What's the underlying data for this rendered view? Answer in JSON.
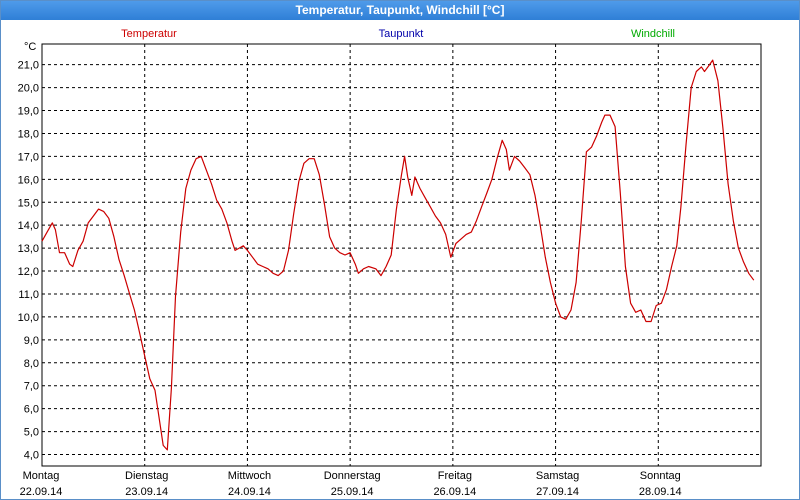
{
  "window": {
    "title": "Temperatur, Taupunkt, Windchill [°C]"
  },
  "chart_data": {
    "type": "line",
    "title": "Temperatur, Taupunkt, Windchill [°C]",
    "ylabel": "°C",
    "unit": "°C",
    "ylim": [
      3.5,
      21.9
    ],
    "xlim": [
      0,
      7
    ],
    "grid": true,
    "legend_placement": "top",
    "legend": [
      {
        "name": "Temperatur",
        "color": "#cc0000"
      },
      {
        "name": "Taupunkt",
        "color": "#0000aa"
      },
      {
        "name": "Windchill",
        "color": "#00aa00"
      }
    ],
    "yticks": [
      "4,0",
      "5,0",
      "6,0",
      "7,0",
      "8,0",
      "9,0",
      "10,0",
      "11,0",
      "12,0",
      "13,0",
      "14,0",
      "15,0",
      "16,0",
      "17,0",
      "18,0",
      "19,0",
      "20,0",
      "21,0"
    ],
    "yticks_values": [
      4,
      5,
      6,
      7,
      8,
      9,
      10,
      11,
      12,
      13,
      14,
      15,
      16,
      17,
      18,
      19,
      20,
      21
    ],
    "xticks": [
      {
        "day": "Montag",
        "date": "22.09.14"
      },
      {
        "day": "Dienstag",
        "date": "23.09.14"
      },
      {
        "day": "Mittwoch",
        "date": "24.09.14"
      },
      {
        "day": "Donnerstag",
        "date": "25.09.14"
      },
      {
        "day": "Freitag",
        "date": "26.09.14"
      },
      {
        "day": "Samstag",
        "date": "27.09.14"
      },
      {
        "day": "Sonntag",
        "date": "28.09.14"
      }
    ],
    "series": [
      {
        "name": "Temperatur",
        "color": "#cc0000",
        "points": [
          [
            0,
            13.3
          ],
          [
            0.05,
            13.7
          ],
          [
            0.1,
            14.1
          ],
          [
            0.13,
            13.8
          ],
          [
            0.17,
            12.8
          ],
          [
            0.22,
            12.8
          ],
          [
            0.27,
            12.3
          ],
          [
            0.3,
            12.2
          ],
          [
            0.35,
            12.9
          ],
          [
            0.4,
            13.3
          ],
          [
            0.45,
            14.1
          ],
          [
            0.5,
            14.4
          ],
          [
            0.55,
            14.7
          ],
          [
            0.6,
            14.6
          ],
          [
            0.65,
            14.3
          ],
          [
            0.7,
            13.5
          ],
          [
            0.75,
            12.5
          ],
          [
            0.8,
            11.8
          ],
          [
            0.86,
            10.9
          ],
          [
            0.9,
            10.3
          ],
          [
            0.94,
            9.5
          ],
          [
            1.0,
            8.3
          ],
          [
            1.05,
            7.3
          ],
          [
            1.1,
            6.8
          ],
          [
            1.14,
            5.6
          ],
          [
            1.18,
            4.4
          ],
          [
            1.22,
            4.2
          ],
          [
            1.26,
            6.9
          ],
          [
            1.3,
            10.9
          ],
          [
            1.35,
            13.7
          ],
          [
            1.4,
            15.6
          ],
          [
            1.45,
            16.4
          ],
          [
            1.5,
            16.9
          ],
          [
            1.55,
            17.0
          ],
          [
            1.6,
            16.4
          ],
          [
            1.65,
            15.8
          ],
          [
            1.7,
            15.1
          ],
          [
            1.75,
            14.7
          ],
          [
            1.8,
            14.1
          ],
          [
            1.85,
            13.3
          ],
          [
            1.88,
            12.9
          ],
          [
            1.92,
            13.0
          ],
          [
            1.96,
            13.1
          ],
          [
            2.0,
            12.9
          ],
          [
            2.05,
            12.6
          ],
          [
            2.1,
            12.3
          ],
          [
            2.15,
            12.2
          ],
          [
            2.2,
            12.1
          ],
          [
            2.25,
            11.9
          ],
          [
            2.3,
            11.8
          ],
          [
            2.35,
            12.0
          ],
          [
            2.4,
            12.9
          ],
          [
            2.45,
            14.5
          ],
          [
            2.5,
            15.9
          ],
          [
            2.55,
            16.7
          ],
          [
            2.6,
            16.9
          ],
          [
            2.65,
            16.9
          ],
          [
            2.7,
            16.2
          ],
          [
            2.75,
            14.9
          ],
          [
            2.8,
            13.5
          ],
          [
            2.85,
            13.0
          ],
          [
            2.9,
            12.8
          ],
          [
            2.95,
            12.7
          ],
          [
            3.0,
            12.8
          ],
          [
            3.05,
            12.3
          ],
          [
            3.08,
            11.9
          ],
          [
            3.13,
            12.1
          ],
          [
            3.18,
            12.2
          ],
          [
            3.25,
            12.1
          ],
          [
            3.3,
            11.8
          ],
          [
            3.35,
            12.2
          ],
          [
            3.4,
            12.7
          ],
          [
            3.45,
            14.7
          ],
          [
            3.5,
            16.2
          ],
          [
            3.53,
            17.0
          ],
          [
            3.56,
            16.1
          ],
          [
            3.6,
            15.3
          ],
          [
            3.63,
            16.1
          ],
          [
            3.68,
            15.6
          ],
          [
            3.73,
            15.2
          ],
          [
            3.78,
            14.8
          ],
          [
            3.83,
            14.4
          ],
          [
            3.88,
            14.1
          ],
          [
            3.93,
            13.6
          ],
          [
            3.98,
            12.6
          ],
          [
            4.03,
            13.2
          ],
          [
            4.08,
            13.4
          ],
          [
            4.13,
            13.6
          ],
          [
            4.18,
            13.7
          ],
          [
            4.23,
            14.2
          ],
          [
            4.28,
            14.8
          ],
          [
            4.33,
            15.4
          ],
          [
            4.38,
            16.0
          ],
          [
            4.43,
            16.9
          ],
          [
            4.48,
            17.7
          ],
          [
            4.52,
            17.3
          ],
          [
            4.55,
            16.4
          ],
          [
            4.6,
            17.0
          ],
          [
            4.65,
            16.8
          ],
          [
            4.7,
            16.5
          ],
          [
            4.75,
            16.2
          ],
          [
            4.8,
            15.3
          ],
          [
            4.85,
            14.0
          ],
          [
            4.9,
            12.6
          ],
          [
            4.95,
            11.5
          ],
          [
            5.0,
            10.6
          ],
          [
            5.05,
            10.0
          ],
          [
            5.1,
            9.9
          ],
          [
            5.15,
            10.3
          ],
          [
            5.2,
            11.5
          ],
          [
            5.25,
            14.2
          ],
          [
            5.3,
            17.2
          ],
          [
            5.35,
            17.4
          ],
          [
            5.4,
            17.9
          ],
          [
            5.45,
            18.5
          ],
          [
            5.48,
            18.8
          ],
          [
            5.53,
            18.8
          ],
          [
            5.58,
            18.3
          ],
          [
            5.63,
            15.4
          ],
          [
            5.68,
            12.2
          ],
          [
            5.73,
            10.6
          ],
          [
            5.78,
            10.2
          ],
          [
            5.83,
            10.3
          ],
          [
            5.88,
            9.8
          ],
          [
            5.93,
            9.8
          ],
          [
            5.98,
            10.5
          ],
          [
            6.03,
            10.6
          ],
          [
            6.08,
            11.2
          ],
          [
            6.13,
            12.2
          ],
          [
            6.18,
            13.1
          ],
          [
            6.22,
            14.8
          ],
          [
            6.27,
            17.5
          ],
          [
            6.32,
            20.0
          ],
          [
            6.37,
            20.7
          ],
          [
            6.42,
            20.9
          ],
          [
            6.45,
            20.7
          ],
          [
            6.5,
            21.0
          ],
          [
            6.53,
            21.2
          ],
          [
            6.58,
            20.3
          ],
          [
            6.63,
            18.2
          ],
          [
            6.68,
            15.8
          ],
          [
            6.73,
            14.2
          ],
          [
            6.78,
            13.0
          ],
          [
            6.83,
            12.4
          ],
          [
            6.88,
            11.9
          ],
          [
            6.93,
            11.6
          ]
        ]
      }
    ]
  }
}
